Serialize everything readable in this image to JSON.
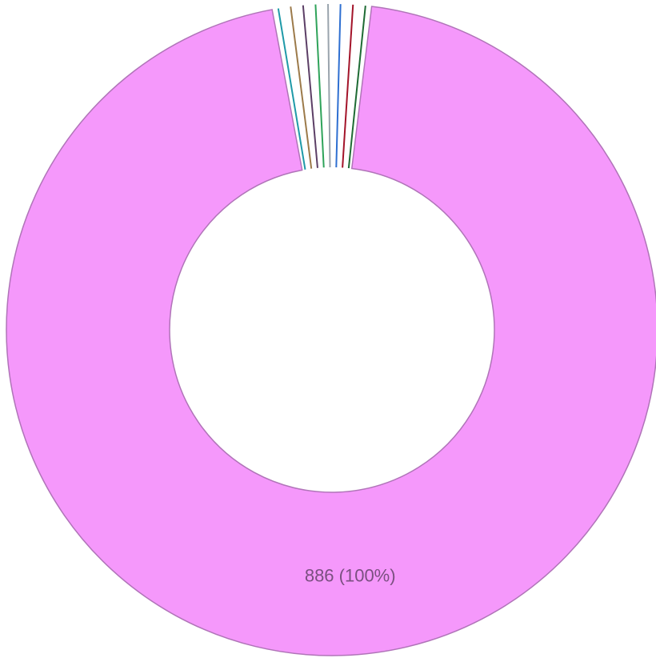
{
  "chart_data": {
    "type": "donut",
    "categories": [
      null,
      null,
      null,
      null,
      null,
      null,
      null,
      null,
      null
    ],
    "values": [
      886,
      0,
      0,
      0,
      0,
      0,
      0,
      0,
      0
    ],
    "value_labels": [
      "886 (100%)",
      null,
      null,
      null,
      null,
      null,
      null,
      null,
      null
    ],
    "colors": [
      "#f598fb",
      "#1f9aa8",
      "#9c7a4a",
      "#5c3f66",
      "#2fa35a",
      "#9aa4ad",
      "#2e6fd1",
      "#a3142a",
      "#1e6b34"
    ]
  }
}
